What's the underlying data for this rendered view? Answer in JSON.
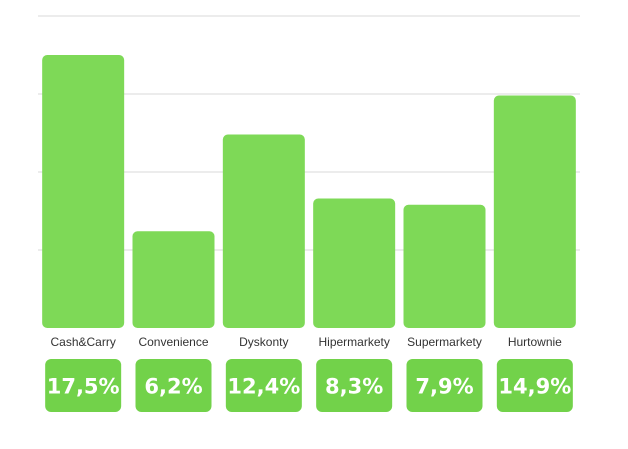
{
  "chart_data": {
    "type": "bar",
    "categories": [
      "Cash&Carry",
      "Convenience",
      "Dyskonty",
      "Hipermarkety",
      "Supermarkety",
      "Hurtownie"
    ],
    "values": [
      17.5,
      6.2,
      12.4,
      8.3,
      7.9,
      14.9
    ],
    "value_labels": [
      "17,5%",
      "6,2%",
      "12,4%",
      "8,3%",
      "7,9%",
      "14,9%"
    ],
    "title": "",
    "xlabel": "",
    "ylabel": "",
    "ylim": [
      0,
      20
    ],
    "grid": true,
    "legend": "none",
    "colors": {
      "bar": "#7ed957",
      "badge": "#72d24a",
      "grid": "#d9d9d9",
      "label": "#333333"
    }
  }
}
